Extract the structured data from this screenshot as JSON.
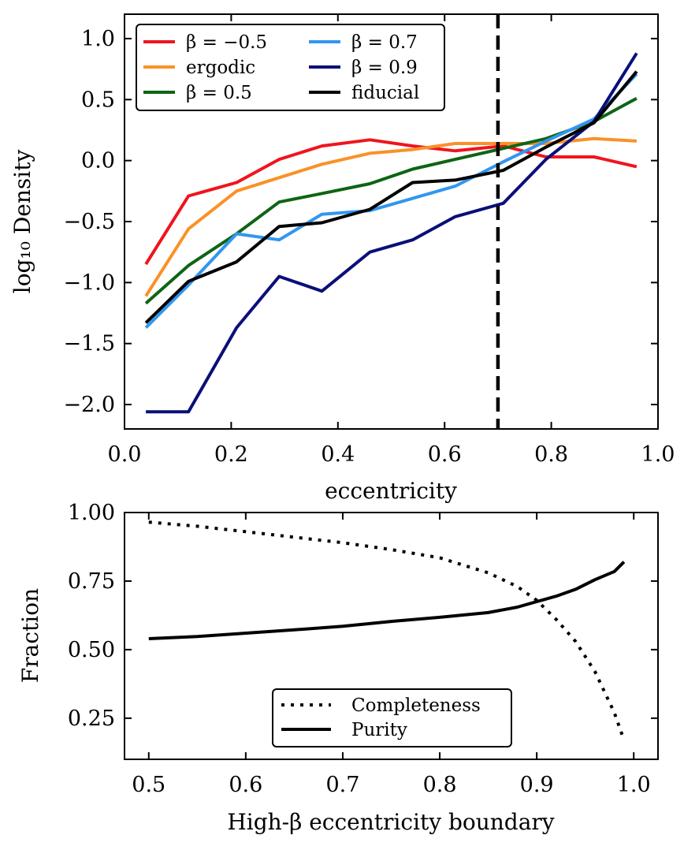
{
  "chart_data": [
    {
      "type": "line",
      "xlabel": "eccentricity",
      "ylabel": "log₁₀ Density",
      "xlim": [
        0.0,
        1.0
      ],
      "ylim": [
        -2.2,
        1.2
      ],
      "xticks": [
        0.0,
        0.2,
        0.4,
        0.6,
        0.8,
        1.0
      ],
      "xtick_labels": [
        "0.0",
        "0.2",
        "0.4",
        "0.6",
        "0.8",
        "1.0"
      ],
      "yticks": [
        -2.0,
        -1.5,
        -1.0,
        -0.5,
        0.0,
        0.5,
        1.0
      ],
      "ytick_labels": [
        "−2.0",
        "−1.5",
        "−1.0",
        "−0.5",
        "0.0",
        "0.5",
        "1.0"
      ],
      "grid": false,
      "legend_position": "top-left",
      "legend_columns": 2,
      "vline": {
        "x": 0.7,
        "style": "dashed",
        "color": "#000000"
      },
      "series": [
        {
          "name": "β = −0.5",
          "color": "#f0141e",
          "x": [
            0.04,
            0.12,
            0.21,
            0.29,
            0.37,
            0.46,
            0.54,
            0.62,
            0.71,
            0.79,
            0.88,
            0.96
          ],
          "y": [
            -0.85,
            -0.29,
            -0.18,
            0.01,
            0.12,
            0.17,
            0.12,
            0.08,
            0.12,
            0.03,
            0.03,
            -0.05
          ]
        },
        {
          "name": "ergodic",
          "color": "#fa9128",
          "x": [
            0.04,
            0.12,
            0.21,
            0.29,
            0.37,
            0.46,
            0.54,
            0.62,
            0.71,
            0.79,
            0.88,
            0.96
          ],
          "y": [
            -1.11,
            -0.56,
            -0.25,
            -0.14,
            -0.03,
            0.06,
            0.09,
            0.14,
            0.14,
            0.14,
            0.18,
            0.16
          ]
        },
        {
          "name": "β = 0.5",
          "color": "#0f6414",
          "x": [
            0.04,
            0.12,
            0.21,
            0.29,
            0.37,
            0.46,
            0.54,
            0.62,
            0.71,
            0.79,
            0.88,
            0.96
          ],
          "y": [
            -1.17,
            -0.86,
            -0.6,
            -0.34,
            -0.27,
            -0.19,
            -0.07,
            0.01,
            0.1,
            0.18,
            0.32,
            0.51
          ]
        },
        {
          "name": "β = 0.7",
          "color": "#3296f0",
          "x": [
            0.04,
            0.12,
            0.21,
            0.29,
            0.37,
            0.46,
            0.54,
            0.62,
            0.71,
            0.79,
            0.88,
            0.96
          ],
          "y": [
            -1.37,
            -1.02,
            -0.6,
            -0.65,
            -0.44,
            -0.41,
            -0.31,
            -0.21,
            -0.01,
            0.16,
            0.34,
            0.71
          ]
        },
        {
          "name": "β = 0.9",
          "color": "#0a0f78",
          "x": [
            0.04,
            0.12,
            0.21,
            0.29,
            0.37,
            0.46,
            0.54,
            0.62,
            0.71,
            0.79,
            0.88,
            0.96
          ],
          "y": [
            -2.06,
            -2.06,
            -1.37,
            -0.95,
            -1.07,
            -0.75,
            -0.65,
            -0.46,
            -0.35,
            0.01,
            0.32,
            0.88
          ]
        },
        {
          "name": "fiducial",
          "color": "#000000",
          "x": [
            0.04,
            0.12,
            0.21,
            0.29,
            0.37,
            0.46,
            0.54,
            0.62,
            0.71,
            0.79,
            0.88,
            0.96
          ],
          "y": [
            -1.33,
            -0.99,
            -0.83,
            -0.54,
            -0.51,
            -0.4,
            -0.18,
            -0.16,
            -0.08,
            0.11,
            0.31,
            0.73
          ]
        }
      ]
    },
    {
      "type": "line",
      "xlabel": "High-β eccentricity boundary",
      "ylabel": "Fraction",
      "xlim": [
        0.475,
        1.025
      ],
      "ylim": [
        0.1,
        1.0
      ],
      "xticks": [
        0.5,
        0.6,
        0.7,
        0.8,
        0.9,
        1.0
      ],
      "xtick_labels": [
        "0.5",
        "0.6",
        "0.7",
        "0.8",
        "0.9",
        "1.0"
      ],
      "yticks": [
        0.25,
        0.5,
        0.75,
        1.0
      ],
      "ytick_labels": [
        "0.25",
        "0.50",
        "0.75",
        "1.00"
      ],
      "grid": false,
      "legend_position": "bottom-center",
      "series": [
        {
          "name": "Completeness",
          "color": "#000000",
          "style": "dotted",
          "x": [
            0.5,
            0.55,
            0.6,
            0.65,
            0.7,
            0.75,
            0.8,
            0.85,
            0.88,
            0.9,
            0.92,
            0.94,
            0.96,
            0.98,
            0.99
          ],
          "y": [
            0.965,
            0.95,
            0.93,
            0.91,
            0.89,
            0.865,
            0.835,
            0.78,
            0.73,
            0.68,
            0.61,
            0.53,
            0.42,
            0.27,
            0.17
          ]
        },
        {
          "name": "Purity",
          "color": "#000000",
          "style": "solid",
          "x": [
            0.5,
            0.55,
            0.6,
            0.65,
            0.7,
            0.75,
            0.8,
            0.85,
            0.88,
            0.9,
            0.92,
            0.94,
            0.96,
            0.98,
            0.99
          ],
          "y": [
            0.54,
            0.548,
            0.56,
            0.572,
            0.585,
            0.603,
            0.618,
            0.635,
            0.655,
            0.675,
            0.695,
            0.72,
            0.755,
            0.785,
            0.82
          ]
        }
      ]
    }
  ]
}
